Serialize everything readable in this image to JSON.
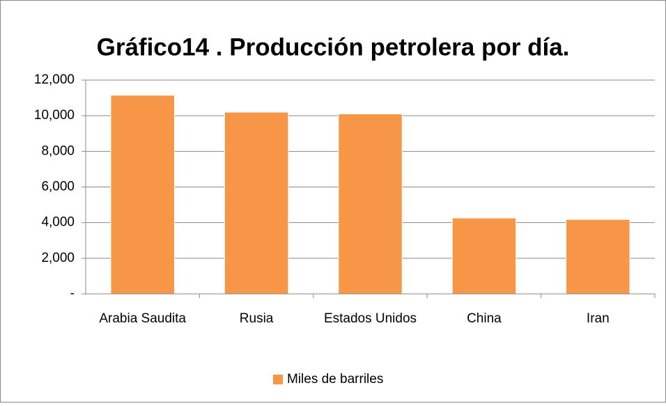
{
  "chart_data": {
    "type": "bar",
    "title": "Gráfico14 . Producción petrolera por día.",
    "categories": [
      "Arabia Saudita",
      "Rusia",
      "Estados Unidos",
      "China",
      "Iran"
    ],
    "series": [
      {
        "name": "Miles de barriles",
        "color": "#f79646",
        "values": [
          11150,
          10200,
          10100,
          4260,
          4180
        ]
      }
    ],
    "ylim": [
      0,
      12000
    ],
    "yticks": [
      {
        "value": 0,
        "label": "-"
      },
      {
        "value": 2000,
        "label": "2,000"
      },
      {
        "value": 4000,
        "label": "4,000"
      },
      {
        "value": 6000,
        "label": "6,000"
      },
      {
        "value": 8000,
        "label": "8,000"
      },
      {
        "value": 10000,
        "label": "10,000"
      },
      {
        "value": 12000,
        "label": "12,000"
      }
    ],
    "grid": true,
    "legend": "bottom"
  }
}
